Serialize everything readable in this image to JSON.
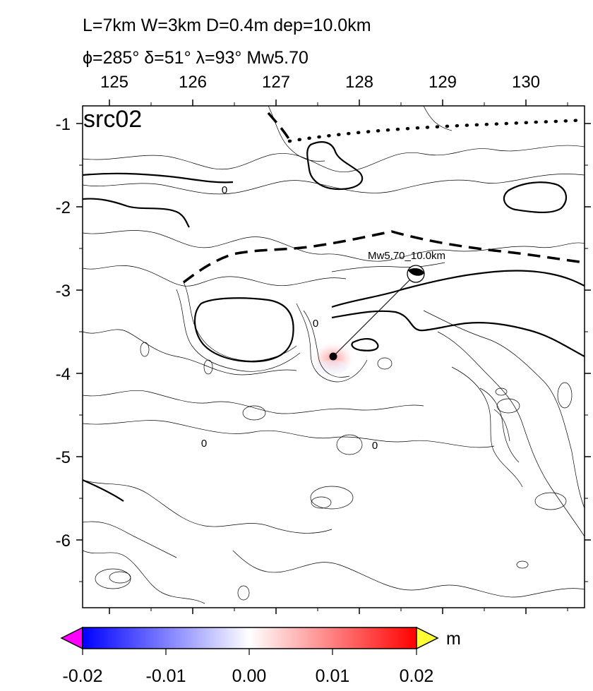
{
  "header": {
    "line1": "L=7km W=3km D=0.4m dep=10.0km",
    "line2": "ϕ=285° δ=51° λ=93° Mw5.70"
  },
  "map": {
    "panel_label": "src02",
    "x_ticks": [
      "125",
      "126",
      "127",
      "128",
      "129",
      "130"
    ],
    "y_ticks": [
      "-1",
      "-2",
      "-3",
      "-4",
      "-5",
      "-6"
    ],
    "contour_labels": [
      "0",
      "0",
      "0",
      "0"
    ],
    "event_label": "Mw5.70_10.0km"
  },
  "colorbar": {
    "ticks": [
      "-0.02",
      "-0.01",
      "0.00",
      "0.01",
      "0.02"
    ],
    "unit": "m",
    "colors": {
      "neg_max": "#0000ff",
      "zero": "#ffffff",
      "pos_max": "#ff0000",
      "under": "#ff00ff",
      "over": "#ffff33"
    }
  }
}
